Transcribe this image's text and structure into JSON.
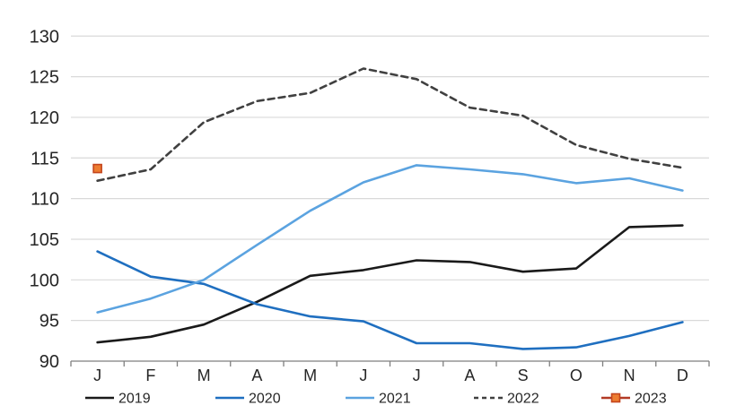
{
  "chart_data": {
    "type": "line",
    "title": "",
    "xlabel": "",
    "ylabel": "",
    "categories": [
      "J",
      "F",
      "M",
      "A",
      "M",
      "J",
      "J",
      "A",
      "S",
      "O",
      "N",
      "D"
    ],
    "ylim": [
      90,
      130
    ],
    "ytick_step": 5,
    "ytick_labels": [
      "90",
      "95",
      "100",
      "105",
      "110",
      "115",
      "120",
      "125",
      "130"
    ],
    "grid": "horizontal",
    "legend_position": "bottom",
    "series": [
      {
        "name": "2019",
        "color": "#1a1a1a",
        "style": "solid",
        "values": [
          92.3,
          93.0,
          94.5,
          97.3,
          100.5,
          101.2,
          102.4,
          102.2,
          101.0,
          101.4,
          106.5,
          106.7
        ]
      },
      {
        "name": "2020",
        "color": "#1f6fc0",
        "style": "solid",
        "values": [
          103.5,
          100.4,
          99.5,
          97.0,
          95.5,
          94.9,
          92.2,
          92.2,
          91.5,
          91.7,
          93.1,
          94.8
        ]
      },
      {
        "name": "2021",
        "color": "#5ba3e0",
        "style": "solid",
        "values": [
          96.0,
          97.7,
          100.0,
          104.3,
          108.5,
          112.0,
          114.1,
          113.6,
          113.0,
          111.9,
          112.5,
          111.0
        ]
      },
      {
        "name": "2022",
        "color": "#404040",
        "style": "dashed",
        "values": [
          112.2,
          113.6,
          119.4,
          122.0,
          123.0,
          126.0,
          124.7,
          121.2,
          120.2,
          116.6,
          114.9,
          113.8
        ]
      },
      {
        "name": "2023",
        "color": "#b23a26",
        "style": "solid",
        "marker": {
          "shape": "square",
          "fill": "#ed7d31",
          "border": "#c4441c"
        },
        "values": [
          113.7,
          null,
          null,
          null,
          null,
          null,
          null,
          null,
          null,
          null,
          null,
          null
        ]
      }
    ]
  },
  "colors": {
    "background": "#ffffff",
    "gridline": "#d9d9d9",
    "axis": "#7f7f7f",
    "tick": "#7f7f7f",
    "axis_label": "#262626",
    "legend_label": "#262626"
  }
}
